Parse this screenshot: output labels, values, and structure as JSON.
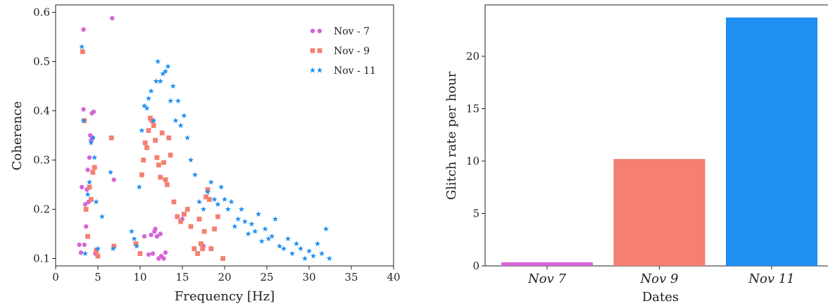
{
  "chart_data": [
    {
      "type": "scatter",
      "xlabel": "Frequency [Hz]",
      "ylabel": "Coherence",
      "xlim": [
        0,
        40
      ],
      "ylim": [
        0.085,
        0.615
      ],
      "xticks": [
        0,
        5,
        10,
        15,
        20,
        25,
        30,
        35,
        40
      ],
      "yticks": [
        0.1,
        0.2,
        0.3,
        0.4,
        0.5,
        0.6
      ],
      "grid": false,
      "legend": "top-right",
      "series": [
        {
          "name": "Nov - 7",
          "marker": "circle",
          "color": "#d566d6",
          "x": [
            2.8,
            3.0,
            3.1,
            3.3,
            3.3,
            3.4,
            3.5,
            3.6,
            3.7,
            3.8,
            3.9,
            4.0,
            4.1,
            4.2,
            4.3,
            4.4,
            4.5,
            4.6,
            4.7,
            4.8,
            5.0,
            6.7,
            6.9,
            10.5,
            11.0,
            11.3,
            11.5,
            11.7,
            11.8,
            12.0,
            12.2,
            12.4,
            12.5,
            12.8,
            13.0,
            15.0,
            17.5
          ],
          "y": [
            0.128,
            0.112,
            0.245,
            0.565,
            0.403,
            0.128,
            0.21,
            0.165,
            0.24,
            0.28,
            0.215,
            0.305,
            0.35,
            0.34,
            0.395,
            0.345,
            0.398,
            0.285,
            0.11,
            0.118,
            0.105,
            0.588,
            0.26,
            0.145,
            0.108,
            0.148,
            0.11,
            0.155,
            0.16,
            0.145,
            0.1,
            0.15,
            0.105,
            0.1,
            0.112,
            0.18,
            0.125
          ]
        },
        {
          "name": "Nov - 9",
          "marker": "square",
          "color": "#f47f72",
          "x": [
            3.2,
            3.4,
            3.6,
            3.8,
            4.0,
            4.2,
            4.4,
            4.6,
            4.8,
            5.0,
            6.6,
            6.9,
            9.5,
            10.0,
            10.2,
            10.4,
            10.6,
            10.8,
            11.0,
            11.2,
            11.4,
            11.6,
            11.8,
            12.0,
            12.2,
            12.4,
            12.6,
            12.8,
            13.0,
            13.2,
            13.4,
            13.6,
            14.0,
            14.4,
            14.8,
            15.2,
            15.6,
            16.0,
            16.4,
            16.8,
            17.0,
            17.2,
            17.4,
            17.6,
            17.8,
            18.0,
            18.2,
            18.4,
            18.8,
            19.2,
            19.8
          ],
          "y": [
            0.52,
            0.38,
            0.2,
            0.145,
            0.245,
            0.22,
            0.275,
            0.285,
            0.115,
            0.105,
            0.345,
            0.125,
            0.13,
            0.11,
            0.27,
            0.3,
            0.335,
            0.325,
            0.36,
            0.385,
            0.38,
            0.37,
            0.34,
            0.305,
            0.29,
            0.265,
            0.355,
            0.295,
            0.26,
            0.25,
            0.345,
            0.31,
            0.215,
            0.185,
            0.175,
            0.19,
            0.2,
            0.165,
            0.12,
            0.11,
            0.18,
            0.13,
            0.12,
            0.155,
            0.225,
            0.24,
            0.22,
            0.12,
            0.16,
            0.185,
            0.1
          ]
        },
        {
          "name": "Nov - 11",
          "marker": "star",
          "color": "#1f8ff2",
          "x": [
            3.1,
            3.3,
            3.5,
            3.8,
            4.0,
            4.2,
            4.4,
            4.6,
            4.8,
            5.0,
            5.5,
            6.5,
            6.8,
            9.0,
            9.3,
            9.6,
            9.9,
            10.2,
            10.5,
            10.8,
            11.0,
            11.3,
            11.6,
            11.9,
            12.1,
            12.4,
            12.7,
            13.0,
            13.3,
            13.6,
            13.9,
            14.2,
            14.5,
            14.8,
            15.2,
            15.6,
            16.0,
            16.5,
            17.0,
            17.5,
            18.0,
            18.4,
            18.8,
            19.2,
            19.6,
            20.0,
            20.4,
            20.8,
            21.2,
            21.6,
            22.0,
            22.4,
            22.8,
            23.2,
            23.6,
            24.0,
            24.4,
            24.8,
            25.2,
            25.6,
            26.0,
            26.5,
            27.0,
            27.5,
            28.0,
            28.5,
            29.0,
            29.5,
            30.0,
            30.5,
            31.0,
            31.5,
            32.0,
            32.4
          ],
          "y": [
            0.53,
            0.38,
            0.11,
            0.23,
            0.255,
            0.335,
            0.345,
            0.305,
            0.215,
            0.12,
            0.185,
            0.275,
            0.12,
            0.155,
            0.14,
            0.125,
            0.245,
            0.36,
            0.41,
            0.405,
            0.425,
            0.44,
            0.38,
            0.46,
            0.5,
            0.46,
            0.475,
            0.48,
            0.49,
            0.42,
            0.45,
            0.38,
            0.42,
            0.37,
            0.39,
            0.345,
            0.3,
            0.27,
            0.215,
            0.2,
            0.235,
            0.255,
            0.22,
            0.21,
            0.245,
            0.22,
            0.2,
            0.215,
            0.165,
            0.18,
            0.2,
            0.175,
            0.15,
            0.17,
            0.155,
            0.19,
            0.135,
            0.16,
            0.14,
            0.145,
            0.18,
            0.125,
            0.12,
            0.14,
            0.11,
            0.13,
            0.12,
            0.1,
            0.115,
            0.105,
            0.13,
            0.11,
            0.16,
            0.1
          ]
        }
      ]
    },
    {
      "type": "bar",
      "xlabel": "Dates",
      "ylabel": "Glitch rate per hour",
      "categories": [
        "Nov 7",
        "Nov 9",
        "Nov 11"
      ],
      "values": [
        0.35,
        10.2,
        23.7
      ],
      "colors": [
        "#d566d6",
        "#f47f72",
        "#1f8ff2"
      ],
      "ylim": [
        0,
        24.9
      ],
      "yticks": [
        0,
        5,
        10,
        15,
        20
      ],
      "grid": false
    }
  ]
}
